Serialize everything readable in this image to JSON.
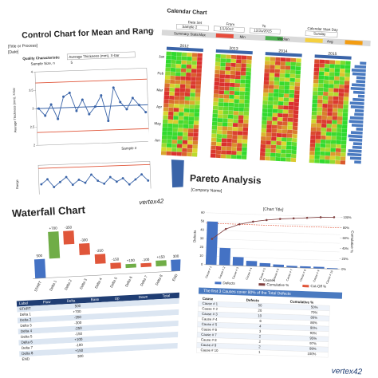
{
  "control_chart": {
    "title": "Control Chart for Mean and Range",
    "subtitle": "[Title or Process]",
    "date": "[Date]",
    "characteristic_label": "Quality Characteristic",
    "characteristic": "Average Thickness (mm), X-bar",
    "sample_size_label": "Sample Size, n",
    "sample_size": 5,
    "y_label": "Average Thickness (mm), X-bar",
    "x_label": "Sample #",
    "range_label": "Range",
    "means": [
      3.0,
      2.8,
      3.1,
      2.7,
      3.3,
      3.4,
      2.9,
      3.2,
      2.8,
      3.0,
      3.3,
      2.6,
      3.5,
      3.1,
      2.9,
      3.2,
      3.0,
      2.8
    ],
    "ylim": [
      2,
      4
    ],
    "yticks": [
      2,
      2.5,
      3,
      3.5,
      4
    ],
    "ucl": 3.7,
    "center": 3.0,
    "lcl": 2.35,
    "ranges": [
      0.8,
      1.1,
      0.6,
      0.9,
      1.2,
      0.7,
      1.0,
      0.8,
      1.3,
      0.9,
      0.7,
      1.1,
      0.8,
      1.0,
      0.6,
      0.9,
      1.2,
      0.8
    ],
    "range_ylim": [
      0,
      2
    ],
    "range_ucl": 1.8
  },
  "calendar_chart": {
    "title": "Calendar Chart",
    "data_set_label": "Data Set",
    "data_set": "Sample 2",
    "from_label": "From",
    "from": "1/1/2012",
    "to_label": "To",
    "to": "12/31/2015",
    "start_day_label": "Calendar Start Day",
    "start_day": "Sunday",
    "summary_label": "Summary Stats",
    "stats": [
      "Max",
      "Min",
      "Median",
      "Avg"
    ],
    "years": [
      "2012",
      "2013",
      "2014",
      "2015"
    ],
    "months": [
      "Jan",
      "Feb",
      "Mar",
      "Apr",
      "May",
      "Jun"
    ]
  },
  "waterfall_chart": {
    "title": "Waterfall Chart",
    "brand": "vertex42",
    "categories": [
      "START",
      "Delta 1",
      "Delta 2",
      "Delta 3",
      "Delta 4",
      "Delta 5",
      "Delta 6",
      "Delta 7",
      "Delta 8",
      "END"
    ],
    "values": [
      500,
      700,
      -350,
      -300,
      -250,
      -150,
      100,
      -100,
      150,
      300
    ],
    "value_labels": [
      "500",
      "+700",
      "-350",
      "-300",
      "-250",
      "-150",
      "+100",
      "-100",
      "+150",
      "300"
    ],
    "ylim": [
      0,
      1400
    ],
    "table_header": [
      "Label",
      "Flow",
      "Delta",
      "Base",
      "Up",
      "Down",
      "Total"
    ]
  },
  "pareto_analysis": {
    "title": "Pareto Analysis",
    "company": "[Company Name]",
    "chart_title": "[Chart Title]",
    "y_label": "Defects",
    "y2_label": "Cumulative %",
    "x_label": "Causes",
    "categories": [
      "Cause # 1",
      "Cause # 2",
      "Cause # 3",
      "Cause # 4",
      "Cause # 5",
      "Cause # 6",
      "Cause # 7",
      "Cause # 8",
      "Cause # 9",
      "Cause # 10"
    ],
    "values": [
      50,
      20,
      10,
      6,
      4,
      3,
      2,
      2,
      2,
      1
    ],
    "cumulative": [
      50,
      70,
      80,
      86,
      90,
      93,
      95,
      97,
      99,
      100
    ],
    "cumulative_labels": [
      "50%",
      "70%",
      "80%",
      "86%",
      "90%",
      "93%",
      "95%",
      "97%",
      "99%",
      "100%"
    ],
    "cutoff": 80,
    "ylim": [
      0,
      60
    ],
    "yticks": [
      0,
      10,
      20,
      30,
      40,
      50,
      60
    ],
    "y2lim": [
      0,
      100
    ],
    "y2ticks": [
      {
        "value": 0,
        "label": "0%"
      },
      {
        "value": 20,
        "label": "20%"
      },
      {
        "value": 40,
        "label": "40%"
      },
      {
        "value": 60,
        "label": "60%"
      },
      {
        "value": 80,
        "label": "80%"
      },
      {
        "value": 100,
        "label": "100%"
      }
    ],
    "legend": [
      "Defects",
      "Cumulative %",
      "Cut-Off %"
    ],
    "note": "The first 3 Causes cover 80% of the Total Defects",
    "table_header": [
      "Cause",
      "Defects",
      "Cumulative %"
    ],
    "brand": "vertex42"
  }
}
